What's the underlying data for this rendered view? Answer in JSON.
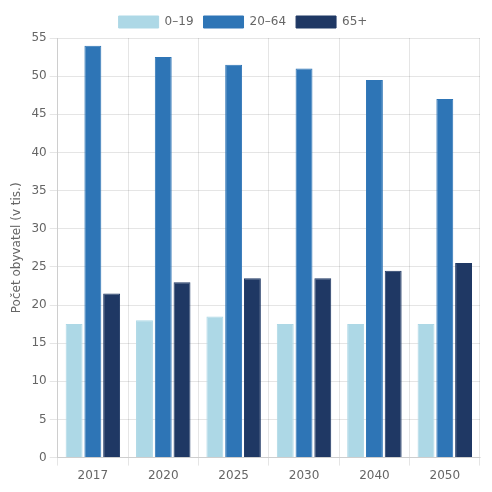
{
  "chart_data": {
    "type": "bar",
    "categories": [
      "2017",
      "2020",
      "2025",
      "2030",
      "2040",
      "2050"
    ],
    "series": [
      {
        "name": "0–19",
        "color": "#add8e6",
        "values": [
          17.5,
          18.0,
          18.5,
          17.5,
          17.5,
          17.5
        ]
      },
      {
        "name": "20–64",
        "color": "#2e75b6",
        "values": [
          54.0,
          52.5,
          51.5,
          51.0,
          49.5,
          47.0
        ]
      },
      {
        "name": "65+",
        "color": "#1f3864",
        "values": [
          21.5,
          23.0,
          23.5,
          23.5,
          24.5,
          25.5
        ]
      }
    ],
    "y_label": "Počet obyvatel (v tis.)",
    "ylim": [
      0,
      55
    ],
    "yticks": [
      0,
      5,
      10,
      15,
      20,
      25,
      30,
      35,
      40,
      45,
      50,
      55
    ],
    "grid": true,
    "legend": "top"
  }
}
